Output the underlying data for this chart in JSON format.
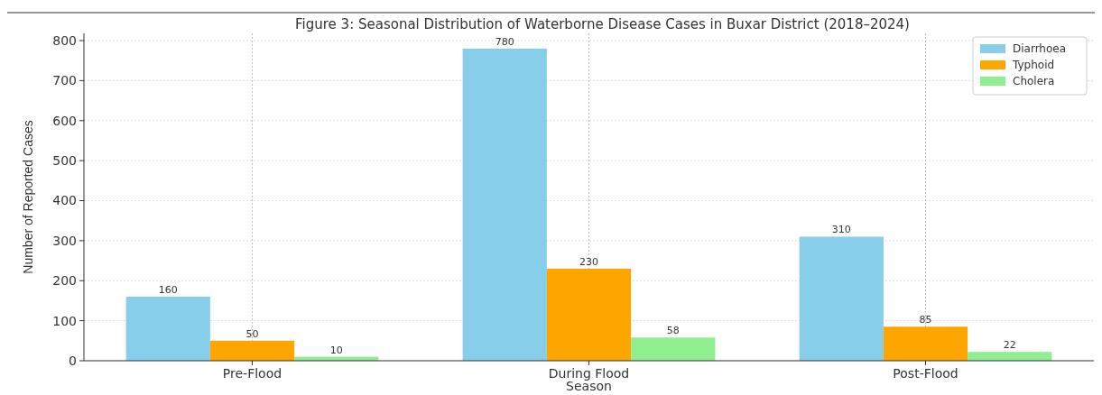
{
  "chart_data": {
    "type": "bar",
    "title": "Figure 3: Seasonal Distribution of Waterborne Disease Cases in Buxar District (2018–2024)",
    "xlabel": "Season",
    "ylabel": "Number of Reported Cases",
    "categories": [
      "Pre-Flood",
      "During Flood",
      "Post-Flood"
    ],
    "series": [
      {
        "name": "Diarrhoea",
        "color": "#87ceeb",
        "values": [
          160,
          780,
          310
        ]
      },
      {
        "name": "Typhoid",
        "color": "#ffa500",
        "values": [
          50,
          230,
          85
        ]
      },
      {
        "name": "Cholera",
        "color": "#90ee90",
        "values": [
          10,
          58,
          22
        ]
      }
    ],
    "ylim": [
      0,
      818
    ],
    "yticks": [
      0,
      100,
      200,
      300,
      400,
      500,
      600,
      700,
      800
    ],
    "grid": true,
    "legend": "top right",
    "data_labels": true
  }
}
